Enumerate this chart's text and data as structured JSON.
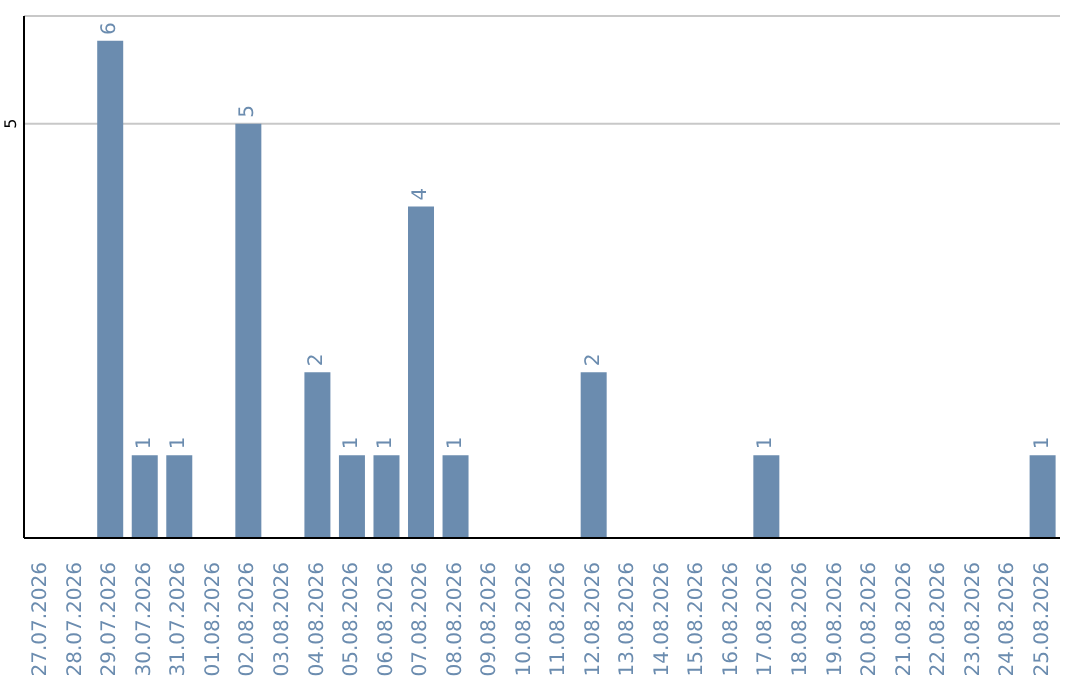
{
  "chart_data": {
    "type": "bar",
    "categories": [
      "27.07.2026",
      "28.07.2026",
      "29.07.2026",
      "30.07.2026",
      "31.07.2026",
      "01.08.2026",
      "02.08.2026",
      "03.08.2026",
      "04.08.2026",
      "05.08.2026",
      "06.08.2026",
      "07.08.2026",
      "08.08.2026",
      "09.08.2026",
      "10.08.2026",
      "11.08.2026",
      "12.08.2026",
      "13.08.2026",
      "14.08.2026",
      "15.08.2026",
      "16.08.2026",
      "17.08.2026",
      "18.08.2026",
      "19.08.2026",
      "20.08.2026",
      "21.08.2026",
      "22.08.2026",
      "23.08.2026",
      "24.08.2026",
      "25.08.2026"
    ],
    "values": [
      0,
      0,
      6,
      1,
      1,
      0,
      5,
      0,
      2,
      1,
      1,
      4,
      1,
      0,
      0,
      0,
      2,
      0,
      0,
      0,
      0,
      1,
      0,
      0,
      0,
      0,
      0,
      0,
      0,
      1
    ],
    "value_labels": [
      null,
      null,
      "6",
      "1",
      "1",
      null,
      "5",
      null,
      "2",
      "1",
      "1",
      "4",
      "1",
      null,
      null,
      null,
      "2",
      null,
      null,
      null,
      null,
      "1",
      null,
      null,
      null,
      null,
      null,
      null,
      null,
      "1"
    ],
    "color": "#6b8caf",
    "ylim": [
      0,
      6.3
    ],
    "yticks": [
      5
    ],
    "grid": "y"
  }
}
